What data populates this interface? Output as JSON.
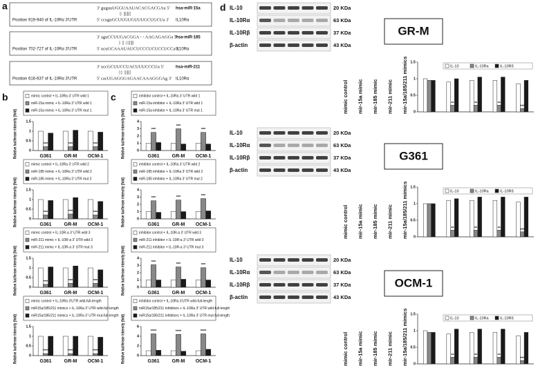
{
  "panels": [
    "a",
    "b",
    "c",
    "d"
  ],
  "alignments": [
    {
      "mirna_seq": "3' guguuUGGUAAUACACGACGAu 5'",
      "pairing": ":|:    ||||||||",
      "mirna": "hsa-miR-15a",
      "position": "Position 919-940 of IL-10Rα 3'UTR",
      "utr_seq": "5' ccuguGCUUGUGUUUGCUGCUa 3'",
      "utr": "IL10Rα"
    },
    {
      "mirna_seq": "3' aguCCUUGACGGA - - AAGAGAGGa 5'",
      "pairing": "|:  ||    :|:||||||",
      "mirna": "hsa-miR-185",
      "position": "Position 702-727 of IL-10Rα 3'UTR",
      "utr_seq": "5' ucuGCAAAUAUCUCCCUCUCCUCCa 3'",
      "utr": "IL10Rα"
    },
    {
      "mirna_seq": "3' uccGCUUCCUACUUUCCCUu 5'",
      "pairing": "|:|:   |||||||",
      "mirna": "hsa-miR-211",
      "position": "Position 616-637 of IL-10Rα 3'UTR",
      "utr_seq": "5' cacUGAGGGAGAACAAAGGGAg 3'",
      "utr": "IL10Rα"
    }
  ],
  "blots": [
    {
      "cell_line": "GR-M",
      "rows": [
        {
          "protein": "IL-10",
          "size": "20 KDa"
        },
        {
          "protein": "IL-10Rα",
          "size": "63 KDa"
        },
        {
          "protein": "IL-10Rβ",
          "size": "37 KDa"
        },
        {
          "protein": "β-actin",
          "size": "43 KDa"
        }
      ]
    },
    {
      "cell_line": "G361",
      "rows": [
        {
          "protein": "IL-10",
          "size": "20 KDa"
        },
        {
          "protein": "IL-10Rα",
          "size": "63 KDa"
        },
        {
          "protein": "IL-10Rβ",
          "size": "37 KDa"
        },
        {
          "protein": "β-actin",
          "size": "43 KDa"
        }
      ]
    },
    {
      "cell_line": "OCM-1",
      "rows": [
        {
          "protein": "IL-10",
          "size": "20 KDa"
        },
        {
          "protein": "IL-10Rα",
          "size": "63 KDa"
        },
        {
          "protein": "IL-10Rβ",
          "size": "37 KDa"
        },
        {
          "protein": "β-actin",
          "size": "43 KDa"
        }
      ]
    }
  ],
  "chart_data": [
    {
      "type": "bar",
      "ylabel": "Relative luciferase intensity (fold)",
      "categories": [
        "G361",
        "GR-M",
        "OCM-1"
      ],
      "ylim": [
        0,
        1.5
      ],
      "yticks": [
        0,
        0.5,
        1,
        1.5
      ],
      "series": [
        {
          "name": "mimic control + IL-10Ra 3' UTR wild 1",
          "color": "#ffffff",
          "values": [
            1,
            1,
            1
          ]
        },
        {
          "name": "miR-15a mimic + IL-10Ra 3' UTR wild 1",
          "color": "#888888",
          "values": [
            0.2,
            0.2,
            0.2
          ]
        },
        {
          "name": "miR-15a mimic + IL-10Ra 3' UTR mut 1",
          "color": "#1a1a1a",
          "values": [
            0.9,
            1.05,
            0.95
          ]
        }
      ],
      "annotations": [
        "***",
        "***",
        "***"
      ]
    },
    {
      "type": "bar",
      "ylabel": "Relative luciferase intensity (fold)",
      "categories": [
        "G361",
        "GR-M",
        "OCM-1"
      ],
      "ylim": [
        0,
        1.5
      ],
      "yticks": [
        0,
        0.5,
        1,
        1.5
      ],
      "series": [
        {
          "name": "mimic control + IL-10Ra 3' UTR wild 2",
          "color": "#ffffff",
          "values": [
            1,
            1,
            1
          ]
        },
        {
          "name": "miR-185 mimic + IL-10Ra 3' UTR wild 2",
          "color": "#888888",
          "values": [
            0.2,
            0.25,
            0.2
          ]
        },
        {
          "name": "miR-185 mimic + IL-10Ra 3' UTR mut 2",
          "color": "#1a1a1a",
          "values": [
            0.95,
            1.1,
            0.9
          ]
        }
      ],
      "annotations": [
        "***",
        "***",
        "***"
      ]
    },
    {
      "type": "bar",
      "ylabel": "Relative luciferase intensity (fold)",
      "categories": [
        "G361",
        "GR-M",
        "OCM-1"
      ],
      "ylim": [
        0,
        1.5
      ],
      "yticks": [
        0,
        0.5,
        1,
        1.5
      ],
      "series": [
        {
          "name": "mimic control + IL-10R-a 3' UTR wild 3",
          "color": "#ffffff",
          "values": [
            1,
            1,
            1
          ]
        },
        {
          "name": "miR-211 mimic + IL-10R-a 3' UTR wild 3",
          "color": "#888888",
          "values": [
            0.15,
            0.2,
            0.2
          ]
        },
        {
          "name": "miR-211 mimic + IL-10R-a 3' UTR mut 3",
          "color": "#1a1a1a",
          "values": [
            1.05,
            1.1,
            0.9
          ]
        }
      ],
      "annotations": [
        "***",
        "***",
        "***"
      ]
    },
    {
      "type": "bar",
      "ylabel": "Relative luciferase intensity (fold)",
      "categories": [
        "G361",
        "GR-M",
        "OCM-1"
      ],
      "ylim": [
        0,
        1.5
      ],
      "yticks": [
        0,
        0.5,
        1,
        1.5
      ],
      "series": [
        {
          "name": "mimic control + IL-10Ra 3'UTR wild-full-length",
          "color": "#ffffff",
          "values": [
            1,
            1,
            1
          ]
        },
        {
          "name": "miR15a/185/211 mimics + IL-10Ra 3' UTR wild-full-length",
          "color": "#888888",
          "values": [
            0.1,
            0.1,
            0.1
          ]
        },
        {
          "name": "miR15a/185/211 mimics + IL-10Ra 3' UTR mut-full-length",
          "color": "#1a1a1a",
          "values": [
            1,
            1,
            0.95
          ]
        }
      ],
      "annotations": [
        "****",
        "****",
        "****"
      ]
    },
    {
      "type": "bar",
      "ylabel": "Relative luciferase intensity (fold)",
      "categories": [
        "G361",
        "GR-M",
        "OCM-1"
      ],
      "ylim": [
        0,
        4
      ],
      "yticks": [
        0,
        1,
        2,
        3,
        4
      ],
      "series": [
        {
          "name": "inhibitor control + IL-10Ra 3' UTR wild 1",
          "color": "#ffffff",
          "values": [
            1,
            1,
            1
          ]
        },
        {
          "name": "miR-15a inhibitor + IL-10Ra 3' UTR wild 1",
          "color": "#888888",
          "values": [
            2.5,
            3,
            2.5
          ]
        },
        {
          "name": "miR-15a inhibitor + IL-10Ra 3' UTR mut 1",
          "color": "#1a1a1a",
          "values": [
            1.1,
            0.9,
            0.9
          ]
        }
      ],
      "annotations": [
        "***",
        "***",
        "***"
      ]
    },
    {
      "type": "bar",
      "ylabel": "Relative luciferase intensity (fold)",
      "categories": [
        "G361",
        "GR-M",
        "OCM-1"
      ],
      "ylim": [
        0,
        4
      ],
      "yticks": [
        0,
        1,
        2,
        3,
        4
      ],
      "series": [
        {
          "name": "inhibitor control + IL-10Ra 3' UTR wild 2",
          "color": "#ffffff",
          "values": [
            1,
            1,
            1
          ]
        },
        {
          "name": "miR-185 inhibitor + IL-10Ra 3' UTR wild 2",
          "color": "#888888",
          "values": [
            2.5,
            2.6,
            2.8
          ]
        },
        {
          "name": "miR-185 inhibitor + IL-10Ra 3' UTR mut 2",
          "color": "#1a1a1a",
          "values": [
            0.9,
            1,
            1.1
          ]
        }
      ],
      "annotations": [
        "***",
        "***",
        "***"
      ]
    },
    {
      "type": "bar",
      "ylabel": "Relative luciferase intensity (fold)",
      "categories": [
        "G361",
        "GR-M",
        "OCM-1"
      ],
      "ylim": [
        0,
        4
      ],
      "yticks": [
        0,
        1,
        2,
        3,
        4
      ],
      "series": [
        {
          "name": "inhibitor control + IL-10R-a 3' UTR wild 3",
          "color": "#ffffff",
          "values": [
            1,
            1,
            1
          ]
        },
        {
          "name": "miR-211 inhibitor + IL-10R-a 3' UTR wild 3",
          "color": "#888888",
          "values": [
            3.1,
            2.8,
            2.7
          ]
        },
        {
          "name": "miR-211 inhibitor + IL-10R-a 3' UTR mut 3",
          "color": "#1a1a1a",
          "values": [
            1,
            1.1,
            1
          ]
        }
      ],
      "annotations": [
        "***",
        "***",
        "***"
      ]
    },
    {
      "type": "bar",
      "ylabel": "Relative luciferase intensity (fold)",
      "categories": [
        "G361",
        "GR-M",
        "OCM-1"
      ],
      "ylim": [
        0,
        6
      ],
      "yticks": [
        0,
        2,
        4,
        6
      ],
      "series": [
        {
          "name": "inhibitor control + IL-10Ra 3'UTR wild-full-length",
          "color": "#ffffff",
          "values": [
            1,
            1,
            1
          ]
        },
        {
          "name": "miR15a/185/211 inhibitors + IL-10Ra 3' UTR wild-full-length",
          "color": "#888888",
          "values": [
            4.5,
            4.4,
            4.5
          ]
        },
        {
          "name": "miR15a/185/211 inhibitors + IL-10Ra 3' UTR mut-full-length",
          "color": "#1a1a1a",
          "values": [
            1.1,
            0.9,
            1.3
          ]
        }
      ],
      "annotations": [
        "****",
        "****",
        "****"
      ]
    },
    {
      "type": "bar",
      "categories": [
        "mimic control",
        "mir-15a mimic",
        "mir-185 mimic",
        "mir-211 mimic",
        "mir-15a/185/211 mimics"
      ],
      "ylim": [
        0,
        1.5
      ],
      "yticks": [
        0,
        0.5,
        1,
        1.5
      ],
      "series": [
        {
          "name": "IL-10",
          "color": "#ffffff",
          "values": [
            1,
            0.9,
            0.95,
            0.95,
            0.85
          ]
        },
        {
          "name": "IL-10Ra",
          "color": "#888888",
          "values": [
            0.95,
            0.2,
            0.2,
            0.2,
            0.1
          ]
        },
        {
          "name": "IL-10Rß",
          "color": "#1a1a1a",
          "values": [
            0.95,
            1,
            1.05,
            1.05,
            0.95
          ]
        }
      ],
      "annotations": [
        null,
        "**",
        "**",
        "**",
        "***"
      ]
    },
    {
      "type": "bar",
      "categories": [
        "mimic control",
        "mir-15a mimic",
        "mir-185 mimic",
        "mir-211 mimic",
        "mir-15a/185/211 mimics"
      ],
      "ylim": [
        0,
        1.5
      ],
      "yticks": [
        0,
        0.5,
        1,
        1.5
      ],
      "series": [
        {
          "name": "IL-10",
          "color": "#ffffff",
          "values": [
            1,
            1.1,
            1.1,
            1.1,
            1.05
          ]
        },
        {
          "name": "IL-10Ra",
          "color": "#888888",
          "values": [
            1,
            0.2,
            0.2,
            0.2,
            0.15
          ]
        },
        {
          "name": "IL-10Rß",
          "color": "#1a1a1a",
          "values": [
            1,
            1.15,
            1.2,
            1.2,
            1.2
          ]
        }
      ],
      "annotations": [
        null,
        "**",
        "**",
        "**",
        "***"
      ]
    },
    {
      "type": "bar",
      "categories": [
        "mimic control",
        "mir-15a mimic",
        "mir-185 mimic",
        "mir-211 mimic",
        "mir-15a/185/211 mimics"
      ],
      "ylim": [
        0,
        1.5
      ],
      "yticks": [
        0,
        0.5,
        1,
        1.5
      ],
      "series": [
        {
          "name": "IL-10",
          "color": "#ffffff",
          "values": [
            1,
            0.9,
            0.95,
            0.95,
            0.85
          ]
        },
        {
          "name": "IL-10Ra",
          "color": "#888888",
          "values": [
            0.95,
            0.2,
            0.2,
            0.2,
            0.1
          ]
        },
        {
          "name": "IL-10Rß",
          "color": "#1a1a1a",
          "values": [
            0.95,
            1.05,
            1.05,
            1.05,
            0.95
          ]
        }
      ],
      "annotations": [
        null,
        "**",
        "**",
        "**",
        "***"
      ]
    }
  ]
}
